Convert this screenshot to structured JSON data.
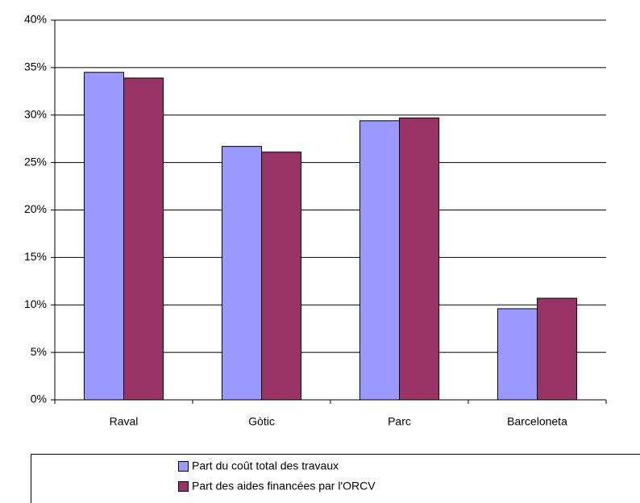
{
  "chart_data": {
    "type": "bar",
    "categories": [
      "Raval",
      "Gòtic",
      "Parc",
      "Barceloneta"
    ],
    "series": [
      {
        "name": "Part du coût total des travaux",
        "color": "#9999ff",
        "values": [
          34.5,
          26.7,
          29.4,
          9.6
        ]
      },
      {
        "name": "Part des aides financées par l'ORCV",
        "color": "#993366",
        "values": [
          33.9,
          26.1,
          29.7,
          10.7
        ]
      }
    ],
    "ylim": [
      0,
      40
    ],
    "yticks": [
      {
        "value": 0,
        "label": "0%"
      },
      {
        "value": 5,
        "label": "5%"
      },
      {
        "value": 10,
        "label": "10%"
      },
      {
        "value": 15,
        "label": "15%"
      },
      {
        "value": 20,
        "label": "20%"
      },
      {
        "value": 25,
        "label": "25%"
      },
      {
        "value": 30,
        "label": "30%"
      },
      {
        "value": 35,
        "label": "35%"
      },
      {
        "value": 40,
        "label": "40%"
      }
    ],
    "grid": true,
    "legend": "bottom"
  }
}
